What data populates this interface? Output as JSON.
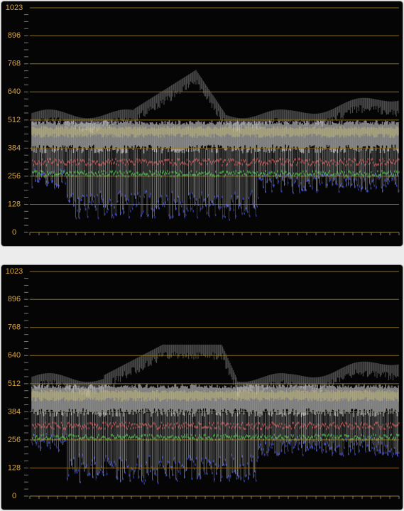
{
  "scopes": [
    {
      "ylim": [
        0,
        1023
      ],
      "yticks": [
        0,
        128,
        256,
        384,
        512,
        640,
        768,
        896,
        1023
      ]
    },
    {
      "ylim": [
        0,
        1023
      ],
      "yticks": [
        0,
        128,
        256,
        384,
        512,
        640,
        768,
        896,
        1023
      ]
    }
  ]
}
